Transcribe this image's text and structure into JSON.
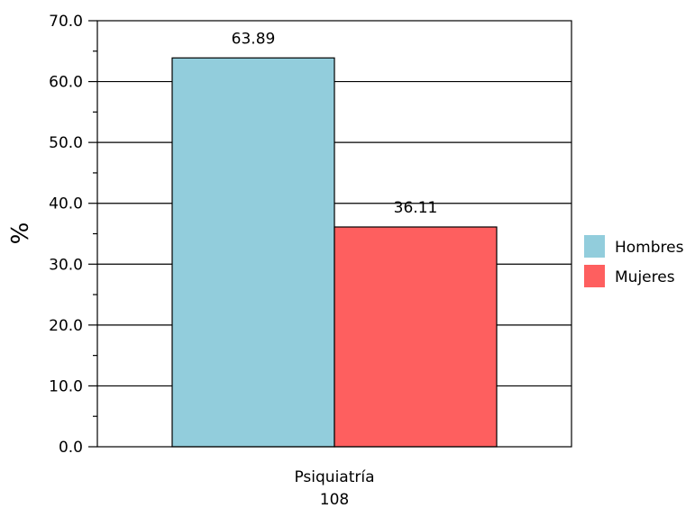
{
  "chart_data": {
    "type": "bar",
    "title": "",
    "xlabel": "",
    "ylabel": "%",
    "ylim": [
      0,
      70
    ],
    "yticks": [
      "0.0",
      "10.0",
      "20.0",
      "30.0",
      "40.0",
      "50.0",
      "60.0",
      "70.0"
    ],
    "grid": true,
    "legend_position": "right",
    "categories": [
      "Psiquiatría"
    ],
    "category_sublabels": [
      "108"
    ],
    "series": [
      {
        "name": "Hombres",
        "values": [
          63.89
        ],
        "color": "#92cddc",
        "data_labels": [
          "63.89"
        ]
      },
      {
        "name": "Mujeres",
        "values": [
          36.11
        ],
        "color": "#fe5f5f",
        "data_labels": [
          "36.11"
        ]
      }
    ]
  }
}
